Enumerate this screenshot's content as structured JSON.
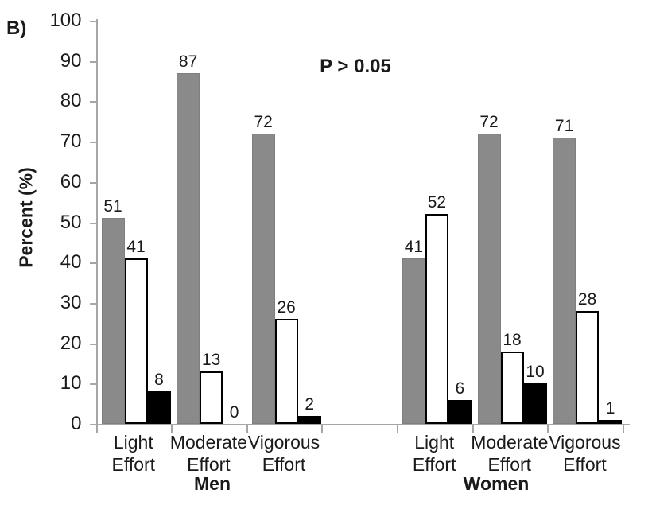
{
  "chart_data": {
    "type": "bar",
    "panel_label": "B)",
    "annotation": "P > 0.05",
    "title": "",
    "xlabel": "",
    "ylabel": "Percent (%)",
    "ylim": [
      0,
      100
    ],
    "yticks": [
      0,
      10,
      20,
      30,
      40,
      50,
      60,
      70,
      80,
      90,
      100
    ],
    "grid": false,
    "legend_position": "none",
    "bar_layout": "grouped, 3 bars per category; Men and Women groups separated by one empty category slot",
    "axis_color": "#a6a6a6",
    "text_color": "#1a1a1a",
    "series_styles": [
      {
        "name": "gray",
        "fill": "#8a8a8a",
        "border": "#7f7f7f",
        "border_width": 1
      },
      {
        "name": "white",
        "fill": "#ffffff",
        "border": "#000000",
        "border_width": 2
      },
      {
        "name": "black",
        "fill": "#000000",
        "border": "#000000",
        "border_width": 2
      }
    ],
    "groups": [
      {
        "label": "Men",
        "categories": [
          {
            "label": "Light Effort",
            "values": [
              51,
              41,
              8
            ]
          },
          {
            "label": "Moderate Effort",
            "values": [
              87,
              13,
              0
            ]
          },
          {
            "label": "Vigorous Effort",
            "values": [
              72,
              26,
              2
            ]
          }
        ]
      },
      {
        "label": "Women",
        "categories": [
          {
            "label": "Light Effort",
            "values": [
              41,
              52,
              6
            ]
          },
          {
            "label": "Moderate Effort",
            "values": [
              72,
              18,
              10
            ]
          },
          {
            "label": "Vigorous Effort",
            "values": [
              71,
              28,
              1
            ]
          }
        ]
      }
    ]
  }
}
